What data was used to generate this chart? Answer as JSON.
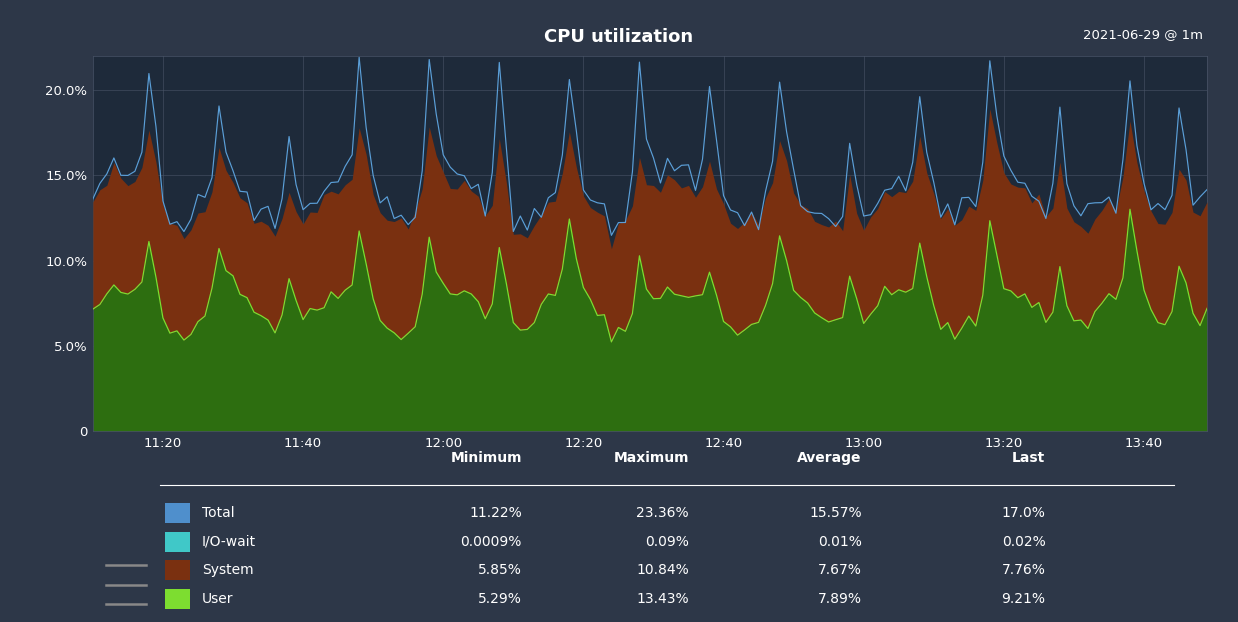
{
  "title": "CPU utilization",
  "subtitle": "2021-06-29 @ 1m",
  "bg_color": "#2d3748",
  "chart_bg_color": "#1e2a3a",
  "grid_color": "#4a5568",
  "text_color": "#ffffff",
  "ytick_vals": [
    0,
    5.0,
    10.0,
    15.0,
    20.0
  ],
  "ytick_labels": [
    "0",
    "5.0%",
    "10.0%",
    "15.0%",
    "20.0%"
  ],
  "xtick_labels": [
    "11:20",
    "11:40",
    "12:00",
    "12:20",
    "12:40",
    "13:00",
    "13:20",
    "13:40"
  ],
  "xtick_positions": [
    10,
    30,
    50,
    70,
    90,
    110,
    130,
    150
  ],
  "ylim": [
    0,
    22
  ],
  "xlim": [
    0,
    159
  ],
  "colors": {
    "total_line": "#5b9fd8",
    "iowait_fill": "#40c8c8",
    "system_fill": "#7a3010",
    "user_fill": "#2d6e10",
    "user_line": "#7ddd30"
  },
  "table": {
    "headers": [
      "Minimum",
      "Maximum",
      "Average",
      "Last"
    ],
    "rows": [
      [
        "Total",
        "11.22%",
        "23.36%",
        "15.57%",
        "17.0%"
      ],
      [
        "I/O-wait",
        "0.0009%",
        "0.09%",
        "0.01%",
        "0.02%"
      ],
      [
        "System",
        "5.85%",
        "10.84%",
        "7.67%",
        "7.76%"
      ],
      [
        "User",
        "5.29%",
        "13.43%",
        "7.89%",
        "9.21%"
      ]
    ],
    "swatch_colors": [
      "#4f8fcc",
      "#40c8c8",
      "#7a3010",
      "#7ddd30"
    ]
  },
  "n_points": 160
}
